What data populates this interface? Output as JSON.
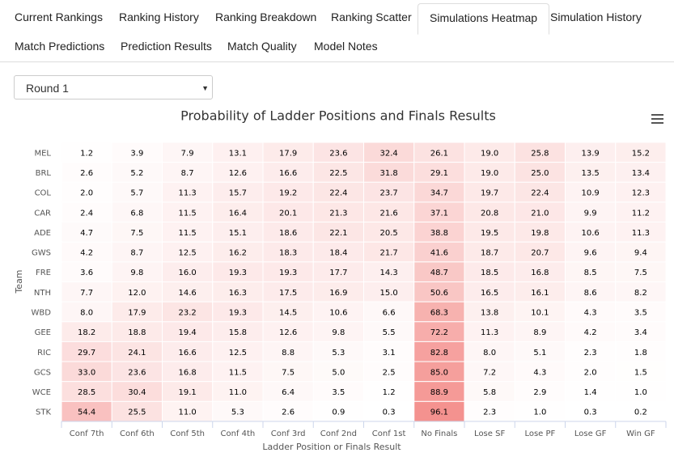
{
  "tabs": [
    "Current Rankings",
    "Ranking History",
    "Ranking Breakdown",
    "Ranking Scatter",
    "Simulations Heatmap",
    "Simulation History",
    "Match Predictions",
    "Prediction Results",
    "Match Quality",
    "Model Notes"
  ],
  "active_tab": 4,
  "dropdown": "Round 1",
  "chart_data": {
    "type": "heatmap",
    "title": "Probability of Ladder Positions and Finals Results",
    "x_label": "Ladder Position or Finals Result",
    "y_label": "Team",
    "x_categories": [
      "Conf 7th",
      "Conf 6th",
      "Conf 5th",
      "Conf 4th",
      "Conf 3rd",
      "Conf 2nd",
      "Conf 1st",
      "No Finals",
      "Lose SF",
      "Lose PF",
      "Lose GF",
      "Win GF"
    ],
    "y_categories": [
      "MEL",
      "BRL",
      "COL",
      "CAR",
      "ADE",
      "GWS",
      "FRE",
      "NTH",
      "WBD",
      "GEE",
      "RIC",
      "GCS",
      "WCE",
      "STK"
    ],
    "colors": [
      "#ffffff",
      "#f4928f"
    ],
    "values": [
      [
        1.2,
        3.9,
        7.9,
        13.1,
        17.9,
        23.6,
        32.4,
        26.1,
        19.0,
        25.8,
        13.9,
        15.2
      ],
      [
        2.6,
        5.2,
        8.7,
        12.6,
        16.6,
        22.5,
        31.8,
        29.1,
        19.0,
        25.0,
        13.5,
        13.4
      ],
      [
        2.0,
        5.7,
        11.3,
        15.7,
        19.2,
        22.4,
        23.7,
        34.7,
        19.7,
        22.4,
        10.9,
        12.3
      ],
      [
        2.4,
        6.8,
        11.5,
        16.4,
        20.1,
        21.3,
        21.6,
        37.1,
        20.8,
        21.0,
        9.9,
        11.2
      ],
      [
        4.7,
        7.5,
        11.5,
        15.1,
        18.6,
        22.1,
        20.5,
        38.8,
        19.5,
        19.8,
        10.6,
        11.3
      ],
      [
        4.2,
        8.7,
        12.5,
        16.2,
        18.3,
        18.4,
        21.7,
        41.6,
        18.7,
        20.7,
        9.6,
        9.4
      ],
      [
        3.6,
        9.8,
        16.0,
        19.3,
        19.3,
        17.7,
        14.3,
        48.7,
        18.5,
        16.8,
        8.5,
        7.5
      ],
      [
        7.7,
        12.0,
        14.6,
        16.3,
        17.5,
        16.9,
        15.0,
        50.6,
        16.5,
        16.1,
        8.6,
        8.2
      ],
      [
        8.0,
        17.9,
        23.2,
        19.3,
        14.5,
        10.6,
        6.6,
        68.3,
        13.8,
        10.1,
        4.3,
        3.5
      ],
      [
        18.2,
        18.8,
        19.4,
        15.8,
        12.6,
        9.8,
        5.5,
        72.2,
        11.3,
        8.9,
        4.2,
        3.4
      ],
      [
        29.7,
        24.1,
        16.6,
        12.5,
        8.8,
        5.3,
        3.1,
        82.8,
        8.0,
        5.1,
        2.3,
        1.8
      ],
      [
        33.0,
        23.6,
        16.8,
        11.5,
        7.5,
        5.0,
        2.5,
        85.0,
        7.2,
        4.3,
        2.0,
        1.5
      ],
      [
        28.5,
        30.4,
        19.1,
        11.0,
        6.4,
        3.5,
        1.2,
        88.9,
        5.8,
        2.9,
        1.4,
        1.0
      ],
      [
        54.4,
        25.5,
        11.0,
        5.3,
        2.6,
        0.9,
        0.3,
        96.1,
        2.3,
        1.0,
        0.3,
        0.2
      ]
    ],
    "value_labels": [
      [
        "1.2",
        "3.9",
        "7.9",
        "13.1",
        "17.9",
        "23.6",
        "32.4",
        "26.1",
        "19.0",
        "25.8",
        "13.9",
        "15.2"
      ],
      [
        "2.6",
        "5.2",
        "8.7",
        "12.6",
        "16.6",
        "22.5",
        "31.8",
        "29.1",
        "19.0",
        "25.0",
        "13.5",
        "13.4"
      ],
      [
        "2.0",
        "5.7",
        "11.3",
        "15.7",
        "19.2",
        "22.4",
        "23.7",
        "34.7",
        "19.7",
        "22.4",
        "10.9",
        "12.3"
      ],
      [
        "2.4",
        "6.8",
        "11.5",
        "16.4",
        "20.1",
        "21.3",
        "21.6",
        "37.1",
        "20.8",
        "21.0",
        "9.9",
        "11.2"
      ],
      [
        "4.7",
        "7.5",
        "11.5",
        "15.1",
        "18.6",
        "22.1",
        "20.5",
        "38.8",
        "19.5",
        "19.8",
        "10.6",
        "11.3"
      ],
      [
        "4.2",
        "8.7",
        "12.5",
        "16.2",
        "18.3",
        "18.4",
        "21.7",
        "41.6",
        "18.7",
        "20.7",
        "9.6",
        "9.4"
      ],
      [
        "3.6",
        "9.8",
        "16.0",
        "19.3",
        "19.3",
        "17.7",
        "14.3",
        "48.7",
        "18.5",
        "16.8",
        "8.5",
        "7.5"
      ],
      [
        "7.7",
        "12.0",
        "14.6",
        "16.3",
        "17.5",
        "16.9",
        "15.0",
        "50.6",
        "16.5",
        "16.1",
        "8.6",
        "8.2"
      ],
      [
        "8.0",
        "17.9",
        "23.2",
        "19.3",
        "14.5",
        "10.6",
        "6.6",
        "68.3",
        "13.8",
        "10.1",
        "4.3",
        "3.5"
      ],
      [
        "18.2",
        "18.8",
        "19.4",
        "15.8",
        "12.6",
        "9.8",
        "5.5",
        "72.2",
        "11.3",
        "8.9",
        "4.2",
        "3.4"
      ],
      [
        "29.7",
        "24.1",
        "16.6",
        "12.5",
        "8.8",
        "5.3",
        "3.1",
        "82.8",
        "8.0",
        "5.1",
        "2.3",
        "1.8"
      ],
      [
        "33.0",
        "23.6",
        "16.8",
        "11.5",
        "7.5",
        "5.0",
        "2.5",
        "85.0",
        "7.2",
        "4.3",
        "2.0",
        "1.5"
      ],
      [
        "28.5",
        "30.4",
        "19.1",
        "11.0",
        "6.4",
        "3.5",
        "1.2",
        "88.9",
        "5.8",
        "2.9",
        "1.4",
        "1.0"
      ],
      [
        "54.4",
        "25.5",
        "11.0",
        "5.3",
        "2.6",
        "0.9",
        "0.3",
        "96.1",
        "2.3",
        "1.0",
        "0.3",
        "0.2"
      ]
    ]
  }
}
